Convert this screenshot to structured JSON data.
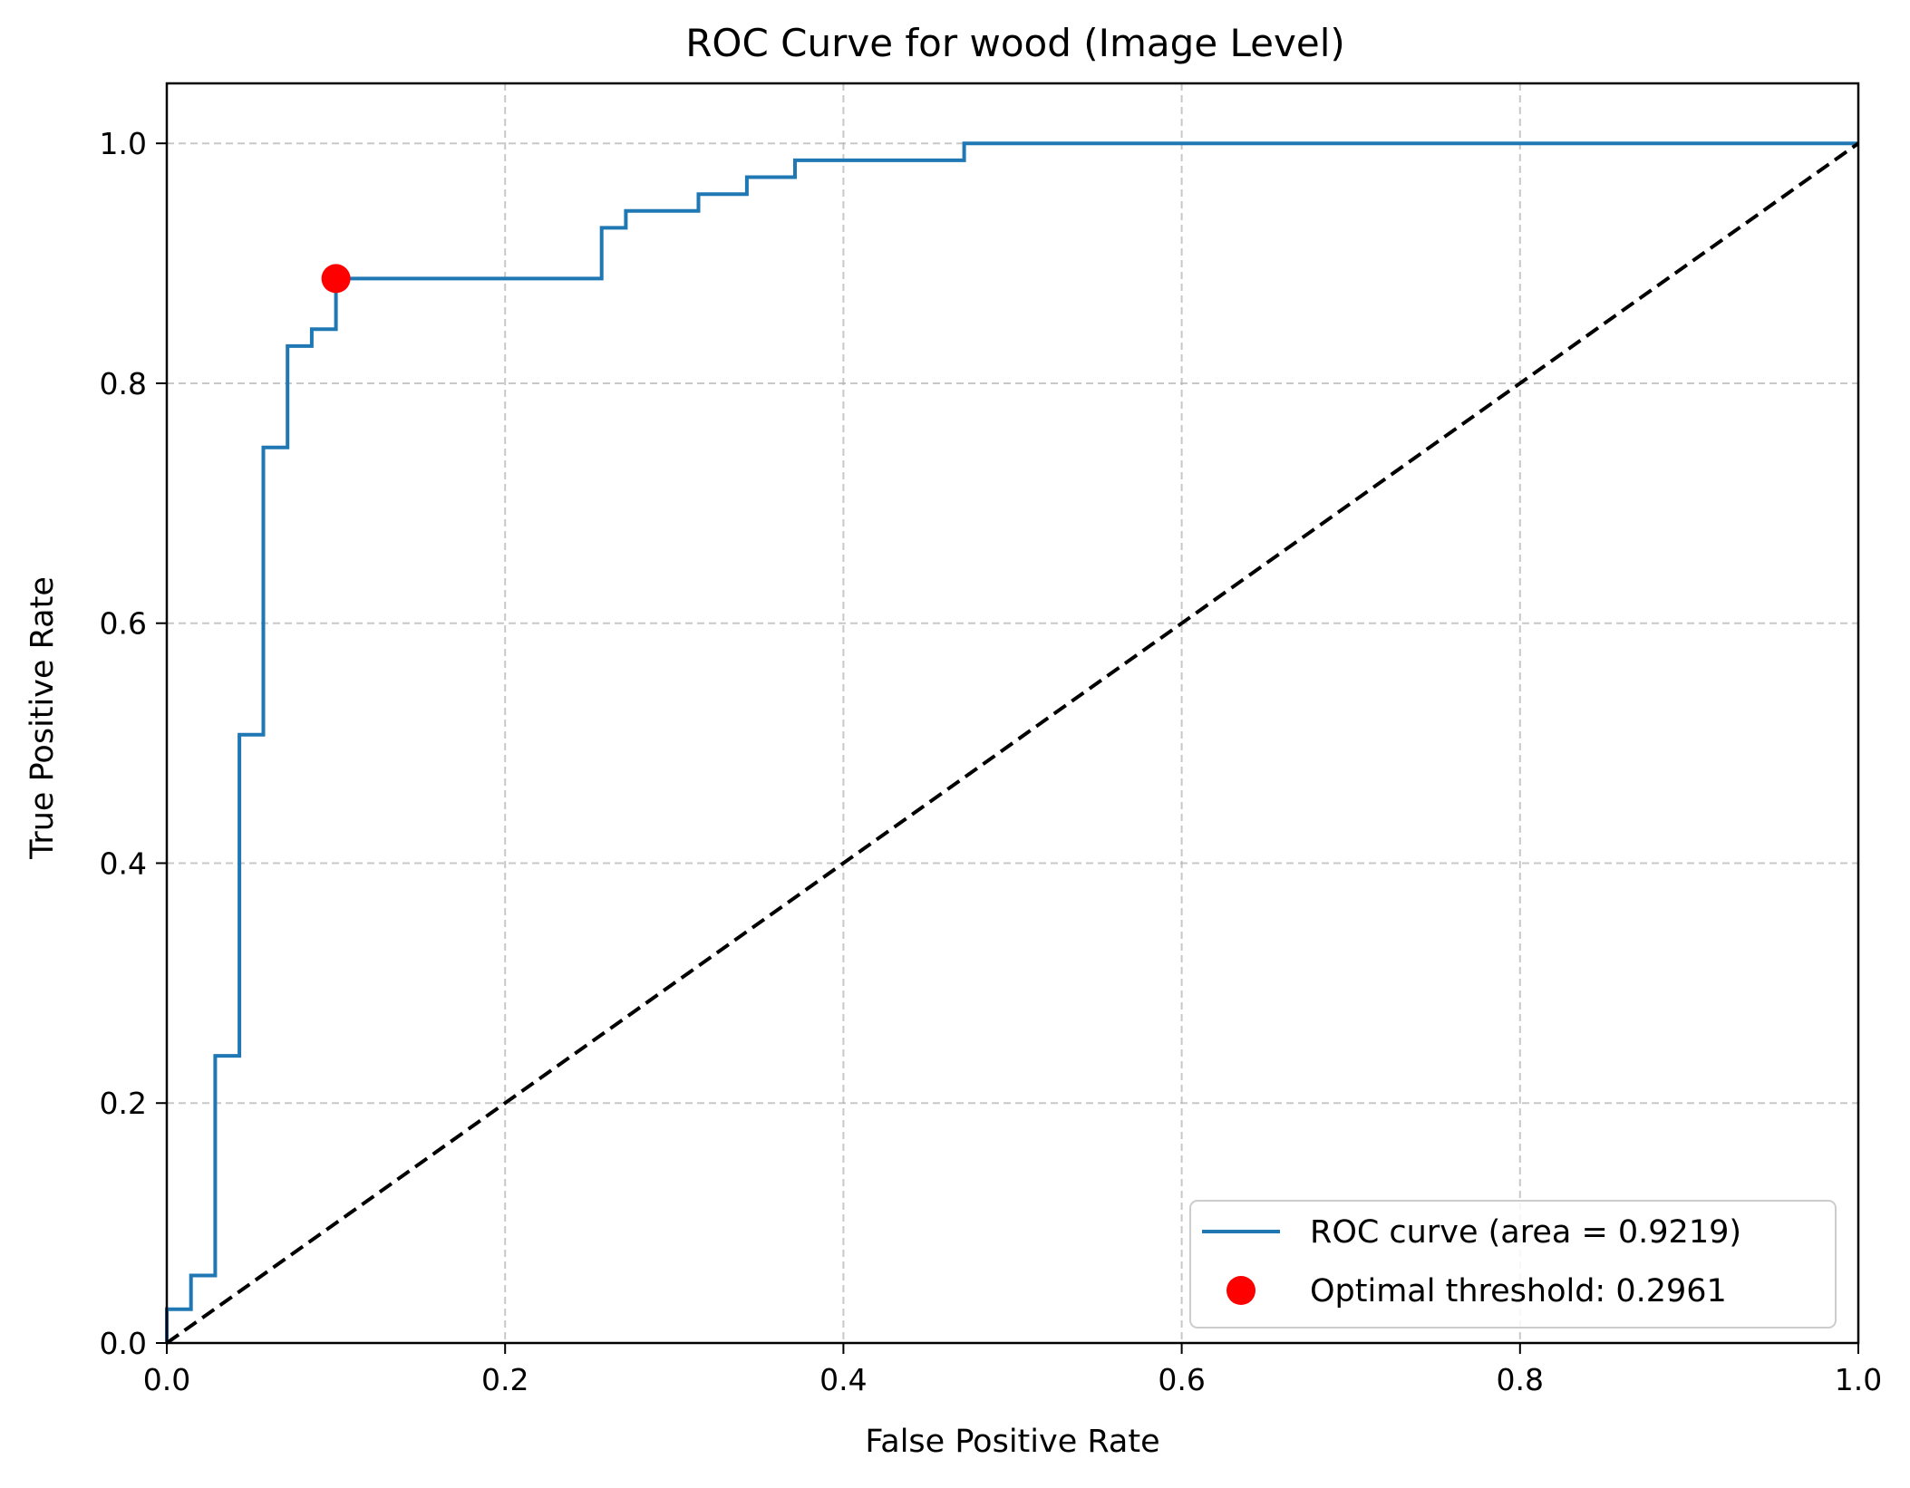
{
  "chart_data": {
    "type": "line",
    "title": "ROC Curve for wood (Image Level)",
    "xlabel": "False Positive Rate",
    "ylabel": "True Positive Rate",
    "xlim": [
      0.0,
      1.0
    ],
    "ylim": [
      0.0,
      1.05
    ],
    "xticks": [
      0.0,
      0.2,
      0.4,
      0.6,
      0.8,
      1.0
    ],
    "yticks": [
      0.0,
      0.2,
      0.4,
      0.6,
      0.8,
      1.0
    ],
    "xtick_labels": [
      "0.0",
      "0.2",
      "0.4",
      "0.6",
      "0.8",
      "1.0"
    ],
    "ytick_labels": [
      "0.0",
      "0.2",
      "0.4",
      "0.6",
      "0.8",
      "1.0"
    ],
    "grid": true,
    "legend_position": "lower right",
    "series": [
      {
        "name": "ROC curve (area = 0.9219)",
        "kind": "step-line",
        "color": "#1f77b4",
        "x": [
          0.0,
          0.0,
          0.0143,
          0.0143,
          0.0286,
          0.0286,
          0.0429,
          0.0429,
          0.0571,
          0.0571,
          0.0714,
          0.0714,
          0.0857,
          0.0857,
          0.1,
          0.1,
          0.2571,
          0.2571,
          0.2714,
          0.2714,
          0.3143,
          0.3143,
          0.3429,
          0.3429,
          0.3714,
          0.3714,
          0.4714,
          0.4714,
          1.0
        ],
        "y": [
          0.0,
          0.0282,
          0.0282,
          0.0563,
          0.0563,
          0.2394,
          0.2394,
          0.507,
          0.507,
          0.7465,
          0.7465,
          0.831,
          0.831,
          0.8451,
          0.8451,
          0.8873,
          0.8873,
          0.9296,
          0.9296,
          0.9437,
          0.9437,
          0.9577,
          0.9577,
          0.9718,
          0.9718,
          0.9859,
          0.9859,
          1.0,
          1.0
        ]
      },
      {
        "name": "",
        "kind": "dashed-line",
        "color": "#000000",
        "x": [
          0.0,
          1.0
        ],
        "y": [
          0.0,
          1.0
        ]
      },
      {
        "name": "Optimal threshold: 0.2961",
        "kind": "marker",
        "color": "#ff0000",
        "x": [
          0.1
        ],
        "y": [
          0.8873
        ]
      }
    ],
    "legend": [
      {
        "label": "ROC curve (area = 0.9219)",
        "kind": "line",
        "color": "#1f77b4"
      },
      {
        "label": "Optimal threshold: 0.2961",
        "kind": "marker",
        "color": "#ff0000"
      }
    ]
  }
}
